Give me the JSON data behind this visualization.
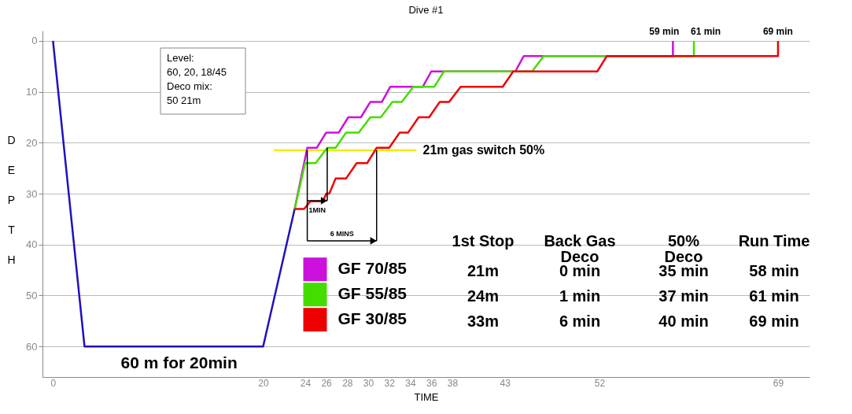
{
  "chart_data": {
    "type": "line",
    "title": "Dive #1",
    "xlabel": "TIME",
    "ylabel": "DEPTH",
    "xlim": [
      -1,
      72
    ],
    "ylim": [
      66,
      -2
    ],
    "xticks": [
      0,
      20,
      24,
      26,
      28,
      30,
      32,
      34,
      36,
      38,
      43,
      52,
      69
    ],
    "yticks": [
      0,
      10,
      20,
      30,
      40,
      50,
      60
    ],
    "grid": "y",
    "legend": "bottom",
    "line_style": "solid",
    "series": [
      {
        "color": "#2010c0",
        "x": [
          0,
          3,
          20,
          23
        ],
        "values": [
          0,
          60,
          60,
          33
        ]
      },
      {
        "name": "GF 70/85",
        "color": "#cc11dd",
        "x": [
          23,
          24.2,
          25.1,
          26,
          27.2,
          28.1,
          29.3,
          30.2,
          31.3,
          32.1,
          35.2,
          36,
          44,
          44.8,
          59,
          59
        ],
        "values": [
          33,
          21,
          21,
          18,
          18,
          15,
          15,
          12,
          12,
          9,
          9,
          6,
          6,
          3,
          3,
          0
        ]
      },
      {
        "name": "GF 55/85",
        "color": "#44dd00",
        "x": [
          23,
          24,
          25,
          26.1,
          26.9,
          27.9,
          29.1,
          30.2,
          31.2,
          32.3,
          33.2,
          34.3,
          36.3,
          37.2,
          45.6,
          46.7,
          61,
          61
        ],
        "values": [
          33,
          24,
          24,
          21,
          21,
          18,
          18,
          15,
          15,
          12,
          12,
          9,
          9,
          6,
          6,
          3,
          3,
          0
        ]
      },
      {
        "name": "GF 30/85",
        "color": "#ee0000",
        "x": [
          23,
          23.9,
          24.5,
          25.7,
          26,
          26.3,
          26.9,
          27.9,
          28.9,
          29.9,
          30.8,
          32,
          33,
          33.8,
          34.8,
          35.8,
          36.8,
          37.7,
          38.8,
          42.8,
          43.8,
          51.8,
          52.7,
          69,
          69
        ],
        "values": [
          33,
          33,
          31.5,
          31.5,
          30,
          30,
          27,
          27,
          24,
          24,
          21,
          21,
          18,
          18,
          15,
          15,
          12,
          12,
          9,
          9,
          6,
          6,
          3,
          3,
          0
        ]
      },
      {
        "color": "#f2ec10",
        "x": [
          21,
          34.6
        ],
        "values": [
          21.5,
          21.5
        ]
      }
    ],
    "annotations": [
      "Level:\n 60, 20, 18/45\nDeco mix:\n 50 21m",
      {
        "text": "1MIN",
        "x": 26.1,
        "y": 21
      },
      "6 MINS",
      {
        "text": "21m gas switch 50%",
        "x": 34.6,
        "y": 21.5
      },
      {
        "text": "60 m for 20min",
        "x": 12,
        "y": 60
      },
      {
        "text": "59 min",
        "x": 59,
        "y": 0
      },
      {
        "text": "61 min",
        "x": 61,
        "y": 0
      },
      {
        "text": "69 min",
        "x": 69,
        "y": 0
      },
      "1st Stop",
      "Back Gas\nDeco",
      "50%\nDeco",
      "Run Time",
      "21m",
      "0 min",
      "35 min",
      "58 min",
      "24m",
      "1 min",
      "37 min",
      "61 min",
      "33m",
      "6 min",
      "40 min",
      "69 min"
    ]
  }
}
